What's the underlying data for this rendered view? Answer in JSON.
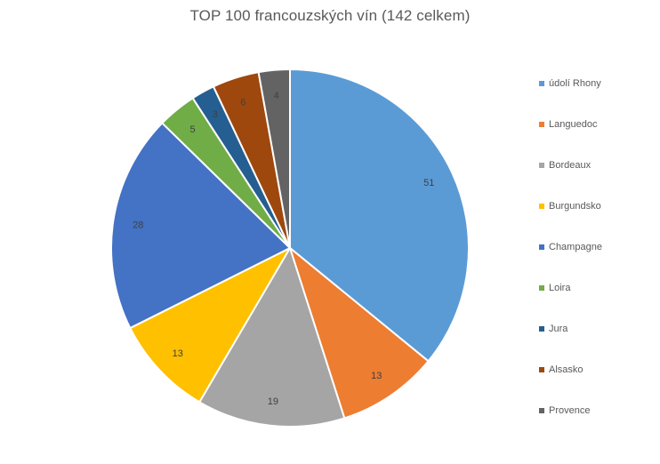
{
  "chart_data": {
    "type": "pie",
    "title": "TOP 100 francouzských vín (142 celkem)",
    "legend_position": "right",
    "slices": [
      {
        "name": "údolí Rhony",
        "value": 51,
        "color": "#5B9BD5"
      },
      {
        "name": "Languedoc",
        "value": 13,
        "color": "#ED7D31"
      },
      {
        "name": "Bordeaux",
        "value": 19,
        "color": "#A5A5A5"
      },
      {
        "name": "Burgundsko",
        "value": 13,
        "color": "#FFC000"
      },
      {
        "name": "Champagne",
        "value": 28,
        "color": "#4472C4"
      },
      {
        "name": "Loira",
        "value": 5,
        "color": "#70AD47"
      },
      {
        "name": "Jura",
        "value": 3,
        "color": "#255E91"
      },
      {
        "name": "Alsasko",
        "value": 6,
        "color": "#9E480E"
      },
      {
        "name": "Provence",
        "value": 4,
        "color": "#636363"
      }
    ]
  }
}
